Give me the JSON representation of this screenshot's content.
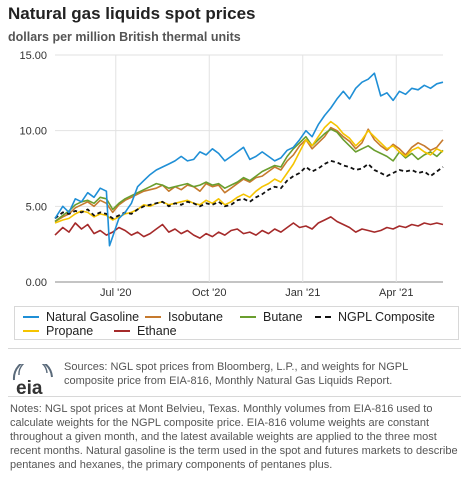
{
  "chart_data": {
    "type": "line",
    "title": "Natural gas liquids spot prices",
    "subtitle": "dollars per million British thermal units",
    "ylim": [
      0,
      15
    ],
    "y_ticks": [
      "0.00",
      "5.00",
      "10.00",
      "15.00"
    ],
    "x_ticks": [
      {
        "label": "Jul '20",
        "t": 1
      },
      {
        "label": "Oct '20",
        "t": 4
      },
      {
        "label": "Jan '21",
        "t": 7
      },
      {
        "label": "Apr '21",
        "t": 10
      }
    ],
    "x_range": [
      -0.95,
      11.5
    ],
    "grid": true,
    "legend_position": "bottom",
    "series": [
      {
        "name": "Natural Gasoline",
        "color": "#1f8fd6",
        "dashed": false,
        "x": [
          -0.95,
          -0.7,
          -0.5,
          -0.3,
          -0.1,
          0.1,
          0.3,
          0.5,
          0.7,
          0.8,
          0.9,
          1.1,
          1.3,
          1.5,
          1.7,
          1.9,
          2.1,
          2.3,
          2.5,
          2.7,
          2.9,
          3.1,
          3.3,
          3.5,
          3.7,
          3.9,
          4.1,
          4.3,
          4.5,
          4.7,
          4.9,
          5.1,
          5.3,
          5.5,
          5.7,
          5.9,
          6.1,
          6.3,
          6.5,
          6.7,
          6.9,
          7.1,
          7.3,
          7.5,
          7.7,
          7.9,
          8.1,
          8.3,
          8.5,
          8.7,
          8.9,
          9.1,
          9.3,
          9.5,
          9.7,
          9.9,
          10.1,
          10.3,
          10.5,
          10.7,
          10.9,
          11.1,
          11.3,
          11.5
        ],
        "y": [
          4.2,
          5.0,
          4.6,
          5.5,
          5.3,
          5.9,
          5.6,
          6.2,
          6.0,
          2.4,
          3.0,
          4.2,
          4.6,
          5.2,
          6.3,
          6.7,
          7.1,
          7.4,
          7.6,
          7.8,
          8.0,
          8.3,
          8.0,
          8.1,
          8.6,
          8.4,
          8.8,
          8.5,
          8.0,
          8.3,
          8.6,
          8.9,
          8.1,
          8.3,
          8.6,
          8.3,
          8.0,
          8.2,
          8.7,
          8.9,
          9.4,
          10.0,
          9.6,
          10.4,
          11.0,
          11.5,
          12.1,
          12.6,
          12.1,
          12.8,
          13.2,
          13.4,
          13.8,
          12.3,
          12.5,
          12.0,
          12.6,
          12.4,
          12.8,
          12.7,
          13.0,
          12.8,
          13.1,
          13.2
        ]
      },
      {
        "name": "Isobutane",
        "color": "#c67a2e",
        "dashed": false,
        "x": [
          -0.95,
          -0.7,
          -0.5,
          -0.3,
          -0.1,
          0.1,
          0.3,
          0.5,
          0.7,
          0.9,
          1.1,
          1.3,
          1.5,
          1.7,
          1.9,
          2.1,
          2.3,
          2.5,
          2.7,
          2.9,
          3.1,
          3.3,
          3.5,
          3.7,
          3.9,
          4.1,
          4.3,
          4.5,
          4.7,
          4.9,
          5.1,
          5.3,
          5.5,
          5.7,
          5.9,
          6.1,
          6.3,
          6.5,
          6.7,
          6.9,
          7.1,
          7.3,
          7.5,
          7.7,
          7.9,
          8.1,
          8.3,
          8.5,
          8.7,
          8.9,
          9.1,
          9.3,
          9.5,
          9.7,
          9.9,
          10.1,
          10.3,
          10.5,
          10.7,
          10.9,
          11.1,
          11.3,
          11.5
        ],
        "y": [
          4.0,
          4.3,
          4.5,
          4.9,
          5.1,
          5.3,
          5.0,
          5.4,
          5.2,
          4.6,
          5.1,
          5.4,
          5.6,
          5.8,
          6.0,
          6.1,
          6.2,
          6.4,
          6.0,
          6.3,
          6.1,
          6.4,
          6.3,
          6.0,
          6.5,
          6.3,
          6.4,
          5.9,
          6.2,
          6.5,
          6.8,
          6.6,
          6.9,
          7.0,
          7.3,
          7.6,
          7.4,
          8.0,
          8.4,
          9.0,
          9.4,
          8.8,
          9.2,
          9.6,
          10.2,
          10.0,
          9.6,
          9.3,
          8.8,
          9.2,
          10.1,
          9.4,
          9.0,
          8.7,
          9.1,
          8.8,
          8.4,
          8.9,
          9.2,
          9.0,
          8.7,
          8.9,
          9.4
        ]
      },
      {
        "name": "Butane",
        "color": "#6a9e2e",
        "dashed": false,
        "x": [
          -0.95,
          -0.7,
          -0.5,
          -0.3,
          -0.1,
          0.1,
          0.3,
          0.5,
          0.7,
          0.9,
          1.1,
          1.3,
          1.5,
          1.7,
          1.9,
          2.1,
          2.3,
          2.5,
          2.7,
          2.9,
          3.1,
          3.3,
          3.5,
          3.7,
          3.9,
          4.1,
          4.3,
          4.5,
          4.7,
          4.9,
          5.1,
          5.3,
          5.5,
          5.7,
          5.9,
          6.1,
          6.3,
          6.5,
          6.7,
          6.9,
          7.1,
          7.3,
          7.5,
          7.7,
          7.9,
          8.1,
          8.3,
          8.5,
          8.7,
          8.9,
          9.1,
          9.3,
          9.5,
          9.7,
          9.9,
          10.1,
          10.3,
          10.5,
          10.7,
          10.9,
          11.1,
          11.3,
          11.5
        ],
        "y": [
          4.0,
          4.4,
          4.7,
          5.1,
          5.3,
          5.4,
          5.2,
          5.6,
          5.5,
          4.8,
          5.2,
          5.5,
          5.7,
          5.9,
          6.1,
          6.3,
          6.5,
          6.4,
          6.2,
          6.3,
          6.4,
          6.5,
          6.3,
          6.4,
          6.6,
          6.4,
          6.5,
          6.2,
          6.4,
          6.6,
          6.9,
          6.7,
          7.0,
          7.3,
          7.5,
          7.7,
          7.6,
          8.3,
          8.8,
          9.2,
          9.6,
          9.0,
          9.4,
          9.8,
          10.1,
          9.9,
          9.4,
          9.0,
          8.6,
          8.8,
          9.0,
          8.7,
          8.5,
          8.3,
          8.0,
          8.6,
          8.2,
          8.5,
          8.1,
          8.4,
          8.6,
          8.3,
          8.7
        ]
      },
      {
        "name": "NGPL Composite",
        "color": "#111111",
        "dashed": true,
        "x": [
          -0.95,
          -0.7,
          -0.5,
          -0.3,
          -0.1,
          0.1,
          0.3,
          0.5,
          0.7,
          0.9,
          1.1,
          1.3,
          1.5,
          1.7,
          1.9,
          2.1,
          2.3,
          2.5,
          2.7,
          2.9,
          3.1,
          3.3,
          3.5,
          3.7,
          3.9,
          4.1,
          4.3,
          4.5,
          4.7,
          4.9,
          5.1,
          5.3,
          5.5,
          5.7,
          5.9,
          6.1,
          6.3,
          6.5,
          6.7,
          6.9,
          7.1,
          7.3,
          7.5,
          7.7,
          7.9,
          8.1,
          8.3,
          8.5,
          8.7,
          8.9,
          9.1,
          9.3,
          9.5,
          9.7,
          9.9,
          10.1,
          10.3,
          10.5,
          10.7,
          10.9,
          11.1,
          11.3,
          11.5
        ],
        "y": [
          4.2,
          4.6,
          4.5,
          4.7,
          4.6,
          4.8,
          4.4,
          4.6,
          4.5,
          4.2,
          4.4,
          4.6,
          4.5,
          4.8,
          5.0,
          5.1,
          5.2,
          5.3,
          5.0,
          5.2,
          5.1,
          5.3,
          5.2,
          5.0,
          5.2,
          5.1,
          5.3,
          5.0,
          5.1,
          5.4,
          5.5,
          5.3,
          5.6,
          5.8,
          6.1,
          6.3,
          6.2,
          6.7,
          7.0,
          7.2,
          7.6,
          7.3,
          7.5,
          7.8,
          8.0,
          7.9,
          7.7,
          7.6,
          7.4,
          7.5,
          7.8,
          7.4,
          7.2,
          7.0,
          7.2,
          7.4,
          7.3,
          7.4,
          7.2,
          7.3,
          7.0,
          7.3,
          7.6
        ]
      },
      {
        "name": "Propane",
        "color": "#f5c400",
        "dashed": false,
        "x": [
          -0.95,
          -0.7,
          -0.5,
          -0.3,
          -0.1,
          0.1,
          0.3,
          0.5,
          0.7,
          0.9,
          1.1,
          1.3,
          1.5,
          1.7,
          1.9,
          2.1,
          2.3,
          2.5,
          2.7,
          2.9,
          3.1,
          3.3,
          3.5,
          3.7,
          3.9,
          4.1,
          4.3,
          4.5,
          4.7,
          4.9,
          5.1,
          5.3,
          5.5,
          5.7,
          5.9,
          6.1,
          6.3,
          6.5,
          6.7,
          6.9,
          7.1,
          7.3,
          7.5,
          7.7,
          7.9,
          8.1,
          8.3,
          8.5,
          8.7,
          8.9,
          9.1,
          9.3,
          9.5,
          9.7,
          9.9,
          10.1,
          10.3,
          10.5,
          10.7,
          10.9,
          11.1,
          11.3,
          11.5
        ],
        "y": [
          3.9,
          4.1,
          4.2,
          4.5,
          4.7,
          4.6,
          4.3,
          4.5,
          4.4,
          4.1,
          4.3,
          4.5,
          4.6,
          4.8,
          5.1,
          5.0,
          5.2,
          5.3,
          5.1,
          5.2,
          5.3,
          5.4,
          5.2,
          5.1,
          5.4,
          5.2,
          5.5,
          5.1,
          5.3,
          5.6,
          5.8,
          5.6,
          6.0,
          6.3,
          6.5,
          6.8,
          6.6,
          7.2,
          7.8,
          8.6,
          9.4,
          9.0,
          9.6,
          10.2,
          10.6,
          10.3,
          9.8,
          9.5,
          9.0,
          9.4,
          10.0,
          9.6,
          9.2,
          8.8,
          9.0,
          8.6,
          8.3,
          8.7,
          8.9,
          8.6,
          8.4,
          8.8,
          8.6
        ]
      },
      {
        "name": "Ethane",
        "color": "#a52a2a",
        "dashed": false,
        "x": [
          -0.95,
          -0.7,
          -0.5,
          -0.3,
          -0.1,
          0.1,
          0.3,
          0.5,
          0.7,
          0.9,
          1.1,
          1.3,
          1.5,
          1.7,
          1.9,
          2.1,
          2.3,
          2.5,
          2.7,
          2.9,
          3.1,
          3.3,
          3.5,
          3.7,
          3.9,
          4.1,
          4.3,
          4.5,
          4.7,
          4.9,
          5.1,
          5.3,
          5.5,
          5.7,
          5.9,
          6.1,
          6.3,
          6.5,
          6.7,
          6.9,
          7.1,
          7.3,
          7.5,
          7.7,
          7.9,
          8.1,
          8.3,
          8.5,
          8.7,
          8.9,
          9.1,
          9.3,
          9.5,
          9.7,
          9.9,
          10.1,
          10.3,
          10.5,
          10.7,
          10.9,
          11.1,
          11.3,
          11.5
        ],
        "y": [
          3.1,
          3.6,
          3.3,
          3.9,
          3.5,
          3.8,
          3.2,
          3.4,
          3.1,
          3.3,
          3.6,
          3.4,
          3.1,
          3.3,
          3.0,
          3.2,
          3.5,
          3.8,
          3.3,
          3.5,
          3.2,
          3.4,
          3.1,
          2.9,
          3.2,
          3.0,
          3.3,
          3.1,
          3.4,
          3.5,
          3.2,
          3.3,
          3.1,
          3.4,
          3.2,
          3.5,
          3.3,
          3.6,
          3.9,
          3.6,
          3.7,
          3.5,
          3.9,
          4.1,
          4.3,
          4.0,
          3.8,
          3.6,
          3.3,
          3.5,
          3.4,
          3.3,
          3.4,
          3.6,
          3.5,
          3.7,
          3.6,
          3.8,
          3.7,
          3.9,
          3.8,
          3.9,
          3.8
        ]
      }
    ]
  },
  "legend": [
    {
      "label": "Natural Gasoline",
      "color": "#1f8fd6",
      "dashed": false
    },
    {
      "label": "Isobutane",
      "color": "#c67a2e",
      "dashed": false
    },
    {
      "label": "Butane",
      "color": "#6a9e2e",
      "dashed": false
    },
    {
      "label": "NGPL Composite",
      "color": "#111111",
      "dashed": true
    },
    {
      "label": "Propane",
      "color": "#f5c400",
      "dashed": false
    },
    {
      "label": "Ethane",
      "color": "#a52a2a",
      "dashed": false
    }
  ],
  "sources": "Sources: NGL spot prices from Bloomberg, L.P., and weights for NGPL composite price from EIA-816, Monthly Natural Gas Liquids Report.",
  "logo_text": "eia",
  "notes": "Notes: NGL spot prices at Mont Belvieu, Texas. Monthly volumes from EIA-816 used to calculate weights for the NGPL composite price. EIA-816 volume weights are constant throughout a given month, and the latest available weights are applied to the three most recent months. Natural gasoline is the term used in the spot and futures markets to describe pentanes and hexanes, the primary components of pentanes plus."
}
